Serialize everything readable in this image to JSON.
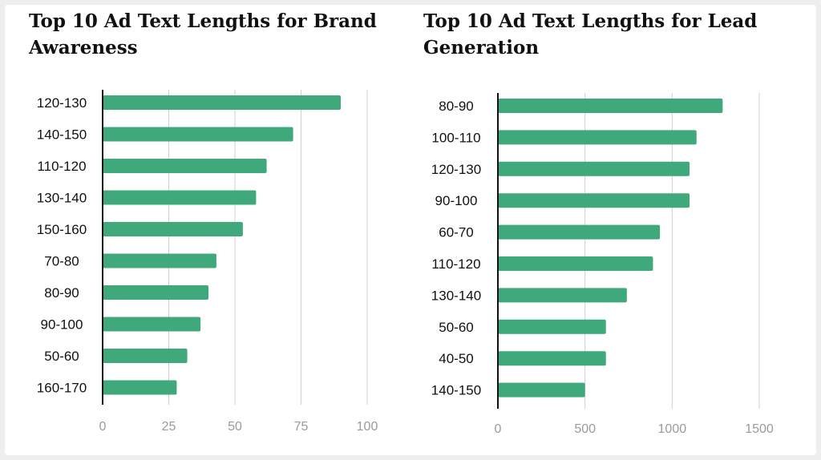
{
  "chart_data": [
    {
      "type": "bar",
      "orientation": "horizontal",
      "title": "Top 10 Ad Text Lengths for Brand Awareness",
      "categories": [
        "120-130",
        "140-150",
        "110-120",
        "130-140",
        "150-160",
        "70-80",
        "80-90",
        "90-100",
        "50-60",
        "160-170"
      ],
      "values": [
        90,
        72,
        62,
        58,
        53,
        43,
        40,
        37,
        32,
        28
      ],
      "xlim": [
        0,
        100
      ],
      "ticks": [
        0,
        25,
        50,
        75,
        100
      ],
      "grid": true,
      "bar_color": "#3fa97c"
    },
    {
      "type": "bar",
      "orientation": "horizontal",
      "title": "Top 10 Ad Text Lengths for Lead Generation",
      "categories": [
        "80-90",
        "100-110",
        "120-130",
        "90-100",
        "60-70",
        "110-120",
        "130-140",
        "50-60",
        "40-50",
        "140-150"
      ],
      "values": [
        1290,
        1140,
        1100,
        1100,
        930,
        890,
        740,
        620,
        620,
        500
      ],
      "xlim": [
        0,
        1500
      ],
      "ticks": [
        0,
        500,
        1000,
        1500
      ],
      "grid": true,
      "bar_color": "#3fa97c"
    }
  ]
}
